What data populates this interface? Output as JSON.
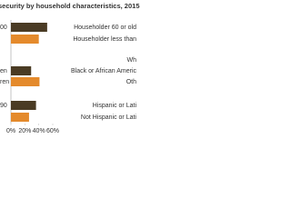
{
  "chart_data": {
    "type": "bar",
    "orientation": "horizontal",
    "title": "security by household characteristics, 2015",
    "categories": [
      "00",
      null,
      null,
      "en",
      "ren",
      "90",
      null
    ],
    "values": [
      52,
      40,
      null,
      29,
      41,
      36,
      26
    ],
    "colors": [
      "#4a3b24",
      "#e48a2c",
      "#4a3b24",
      "#4a3b24",
      "#e48a2c",
      "#4a3b24",
      "#e48a2c"
    ],
    "labels": [
      "Householder 60 or old",
      "Householder less than",
      "Wh",
      "Black or African Americ",
      "Oth",
      "Hispanic or Lati",
      "Not Hispanic or Lati"
    ],
    "xlim": [
      0,
      60
    ],
    "xticks": [
      {
        "value": 0,
        "label": "0%"
      },
      {
        "value": 20,
        "label": "20%"
      },
      {
        "value": 40,
        "label": "40%"
      },
      {
        "value": 60,
        "label": "60%"
      }
    ]
  }
}
